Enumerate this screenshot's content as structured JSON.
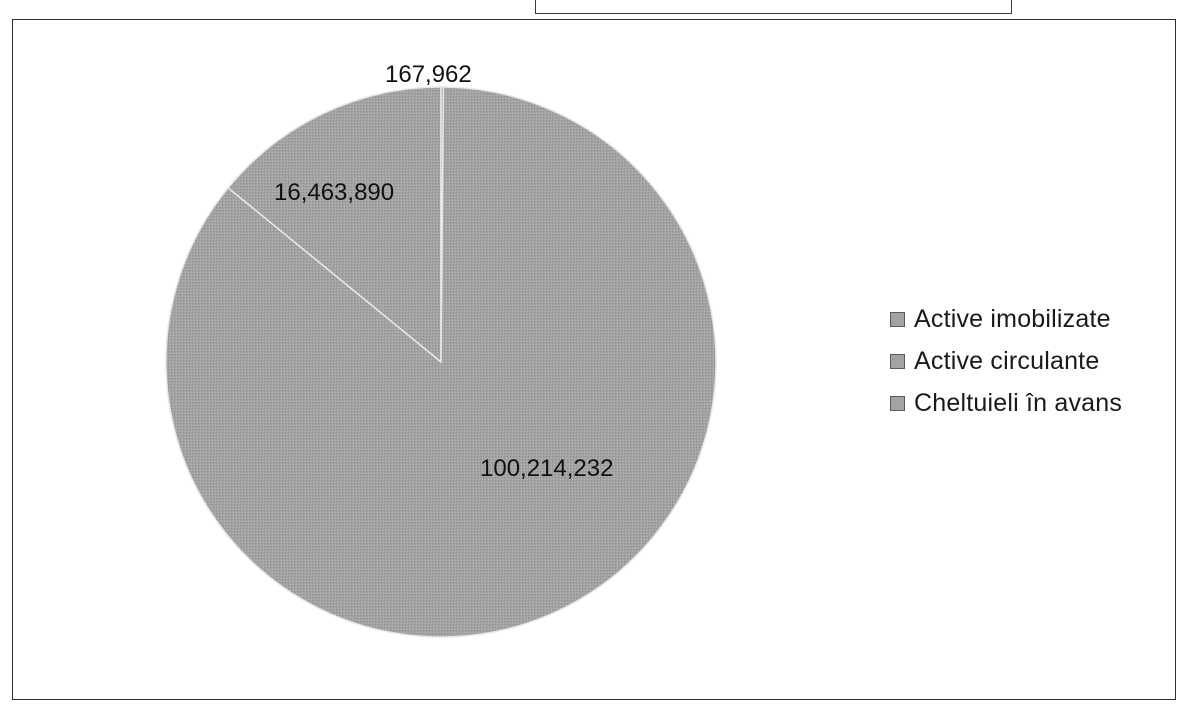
{
  "colors": {
    "slice_fill": "#a3a3a3",
    "slice_edge": "#e8e8e8",
    "frame": "#2f2f2f"
  },
  "chart_data": {
    "type": "pie",
    "categories": [
      "Active imobilizate",
      "Active circulante",
      "Cheltuieli în avans"
    ],
    "values": [
      16463890,
      100214232,
      167962
    ],
    "data_labels": [
      "16,463,890",
      "100,214,232",
      "167,962"
    ],
    "legend_position": "right",
    "title": ""
  },
  "legend": {
    "items": [
      {
        "label": "Active imobilizate"
      },
      {
        "label": "Active circulante"
      },
      {
        "label": "Cheltuieli în avans"
      }
    ]
  }
}
